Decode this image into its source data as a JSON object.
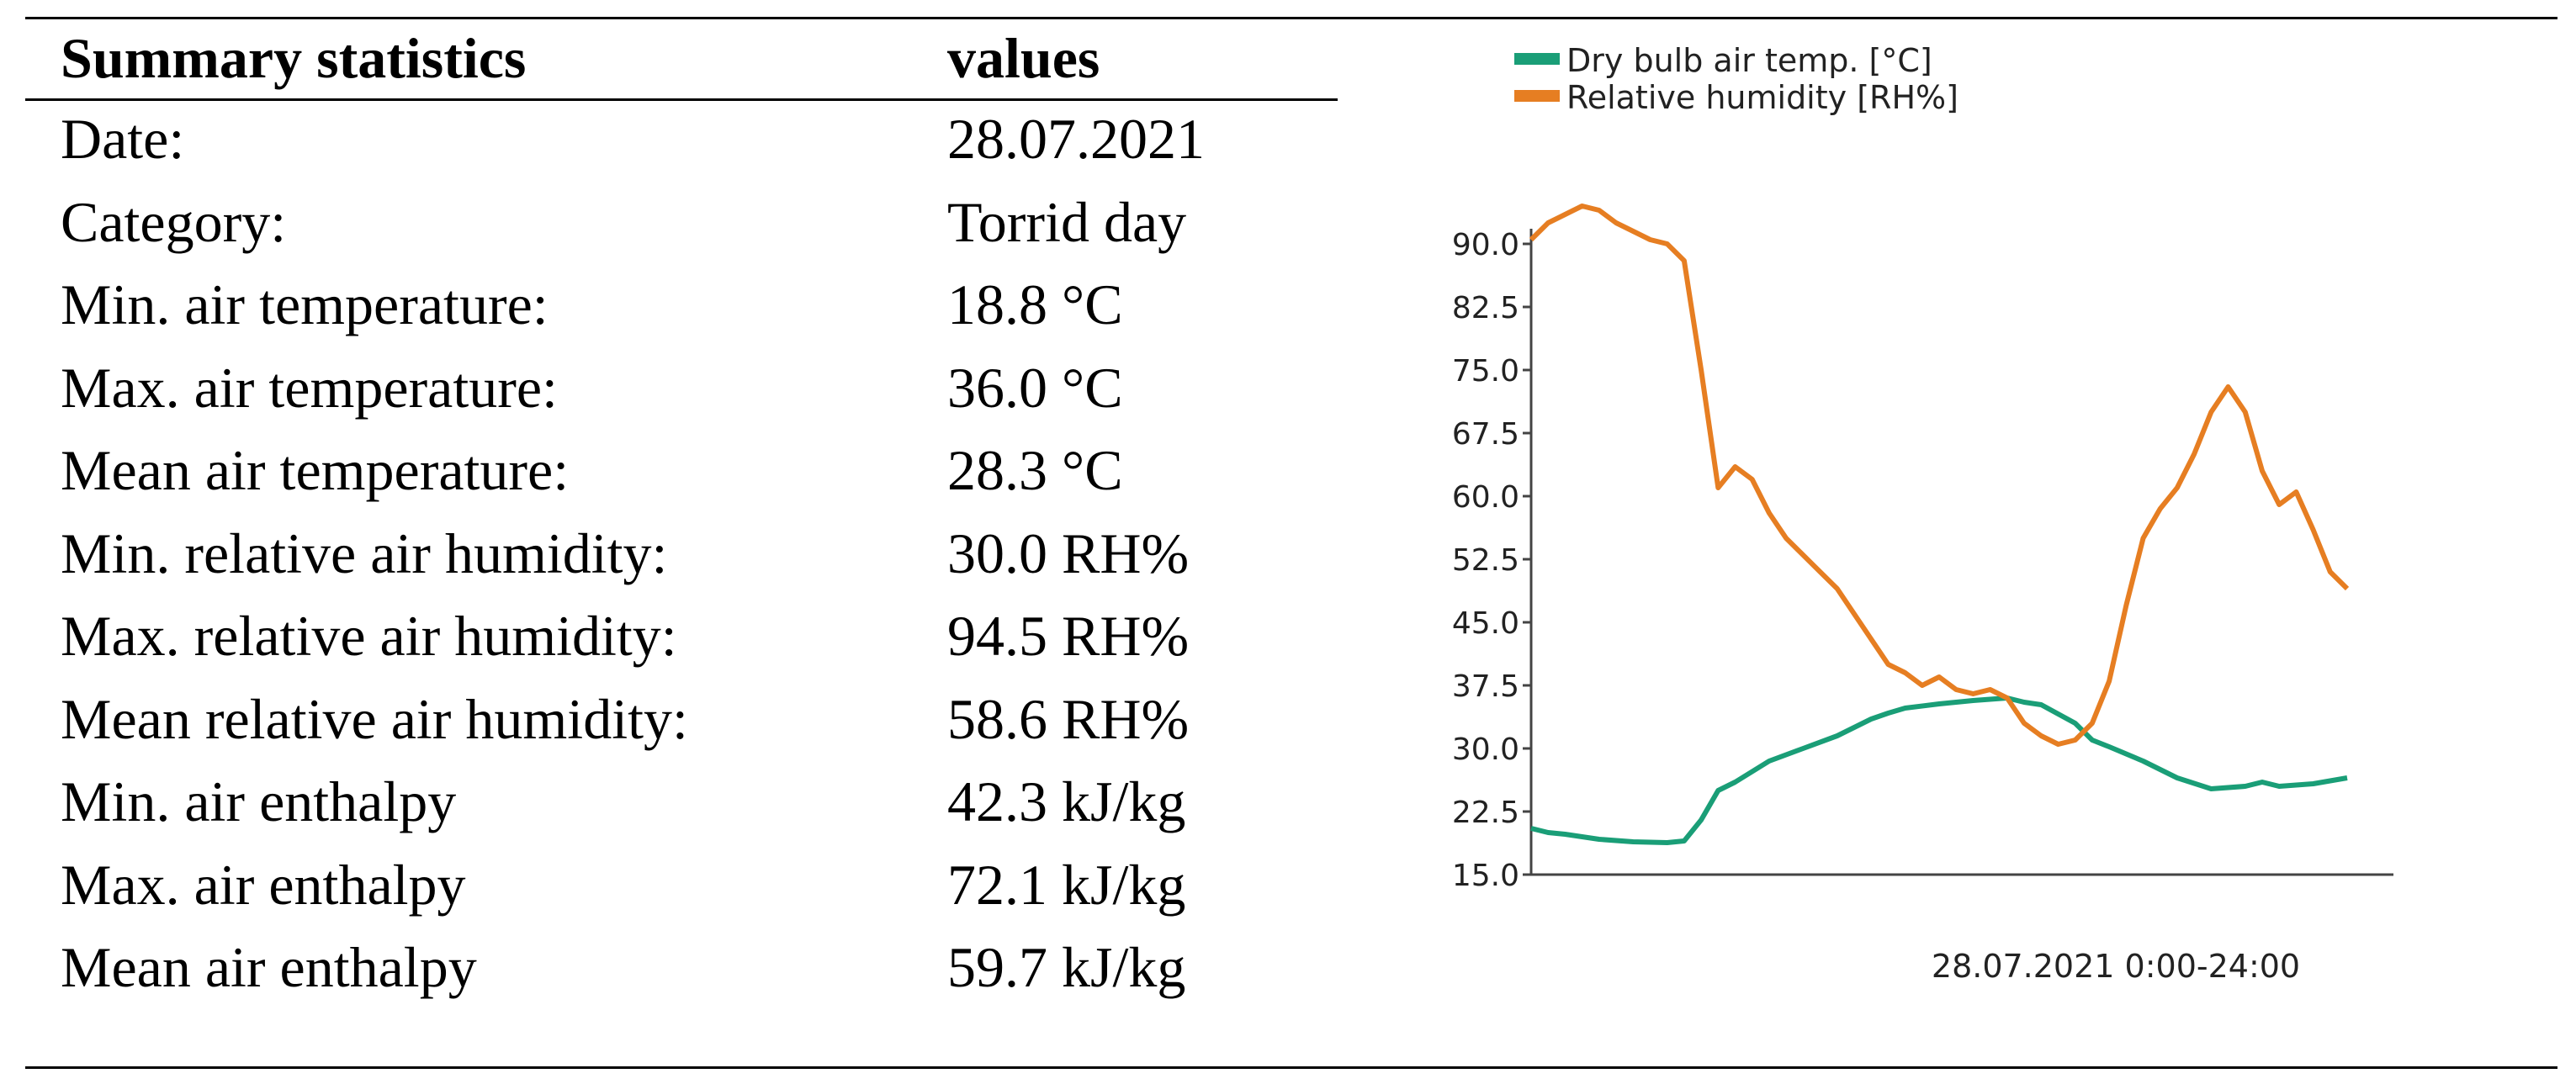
{
  "table": {
    "headers": {
      "label": "Summary statistics",
      "value": "values"
    },
    "rows": [
      {
        "label": "Date:",
        "value": "28.07.2021"
      },
      {
        "label": "Category:",
        "value": "Torrid day"
      },
      {
        "label": "Min. air temperature:",
        "value": "18.8 °C"
      },
      {
        "label": "Max. air temperature:",
        "value": "36.0 °C"
      },
      {
        "label": "Mean air temperature:",
        "value": "28.3 °C"
      },
      {
        "label": "Min. relative air humidity:",
        "value": "30.0 RH%"
      },
      {
        "label": "Max. relative air humidity:",
        "value": "94.5 RH%"
      },
      {
        "label": "Mean relative air humidity:",
        "value": "58.6 RH%"
      },
      {
        "label": "Min. air enthalpy",
        "value": "42.3 kJ/kg"
      },
      {
        "label": "Max. air enthalpy",
        "value": "72.1 kJ/kg"
      },
      {
        "label": "Mean air enthalpy",
        "value": "59.7 kJ/kg"
      }
    ]
  },
  "chart_data": {
    "type": "line",
    "title": "",
    "xlabel": "28.07.2021 0:00-24:00",
    "ylabel": "",
    "ylim": [
      15.0,
      90.0
    ],
    "xlim": [
      0,
      24
    ],
    "yticks": [
      "15.0",
      "22.5",
      "30.0",
      "37.5",
      "45.0",
      "52.5",
      "60.0",
      "67.5",
      "75.0",
      "82.5",
      "90.0"
    ],
    "grid": false,
    "legend_position": "top-left",
    "series": [
      {
        "name": "Dry bulb air temp. [°C]",
        "color": "#1a9e77",
        "x": [
          0,
          0.5,
          1,
          2,
          3,
          4,
          4.5,
          5,
          5.5,
          6,
          7,
          8,
          9,
          10,
          10.5,
          11,
          12,
          12.5,
          13,
          14,
          14.5,
          15,
          16,
          16.5,
          17,
          18,
          19,
          20,
          21,
          21.5,
          22,
          23,
          24
        ],
        "values": [
          20.5,
          20.0,
          19.8,
          19.2,
          18.9,
          18.8,
          19.0,
          21.5,
          25.0,
          26.0,
          28.5,
          30.0,
          31.5,
          33.5,
          34.2,
          34.8,
          35.3,
          35.5,
          35.7,
          36.0,
          35.5,
          35.2,
          33.0,
          31.0,
          30.2,
          28.5,
          26.5,
          25.2,
          25.5,
          26.0,
          25.5,
          25.8,
          26.5
        ]
      },
      {
        "name": "Relative humidity [RH%]",
        "color": "#e67e22",
        "x": [
          0,
          0.5,
          1,
          1.5,
          2,
          2.5,
          3,
          3.5,
          4,
          4.5,
          5,
          5.5,
          6,
          6.5,
          7,
          7.5,
          8,
          8.5,
          9,
          9.5,
          10,
          10.5,
          11,
          11.5,
          12,
          12.5,
          13,
          13.5,
          14,
          14.5,
          15,
          15.5,
          16,
          16.5,
          17,
          17.5,
          18,
          18.5,
          19,
          19.5,
          20,
          20.5,
          21,
          21.5,
          22,
          22.5,
          23,
          23.5,
          24
        ],
        "values": [
          90.5,
          92.5,
          93.5,
          94.5,
          94.0,
          92.5,
          91.5,
          90.5,
          90.0,
          88.0,
          75.0,
          61.0,
          63.5,
          62.0,
          58.0,
          55.0,
          53.0,
          51.0,
          49.0,
          46.0,
          43.0,
          40.0,
          39.0,
          37.5,
          38.5,
          37.0,
          36.5,
          37.0,
          36.0,
          33.0,
          31.5,
          30.5,
          31.0,
          33.0,
          38.0,
          47.0,
          55.0,
          58.5,
          61.0,
          65.0,
          70.0,
          73.0,
          70.0,
          63.0,
          59.0,
          60.5,
          56.0,
          51.0,
          49.0
        ]
      }
    ]
  }
}
